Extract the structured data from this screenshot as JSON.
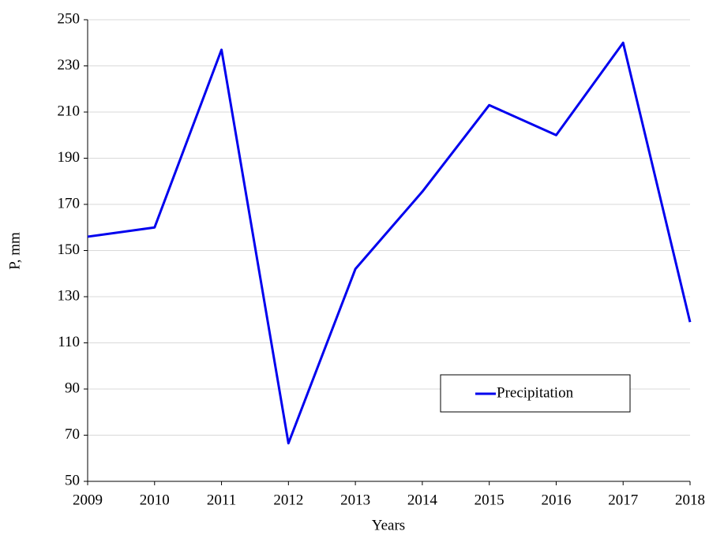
{
  "chart_data": {
    "type": "line",
    "x_label": "Years",
    "y_label": "P, mm",
    "x": [
      2009,
      2010,
      2011,
      2012,
      2013,
      2014,
      2015,
      2016,
      2017,
      2018
    ],
    "series": [
      {
        "name": "Precipitation",
        "color": "#0000ee",
        "values": [
          156,
          160,
          237,
          66.5,
          142,
          175.5,
          213,
          200,
          240,
          119
        ]
      }
    ],
    "xlim": [
      2009,
      2018
    ],
    "xticks": [
      2009,
      2010,
      2011,
      2012,
      2013,
      2014,
      2015,
      2016,
      2017,
      2018
    ],
    "ylim": [
      50,
      250
    ],
    "yticks": [
      50,
      70,
      90,
      110,
      130,
      150,
      170,
      190,
      210,
      230,
      250
    ],
    "grid": true
  }
}
